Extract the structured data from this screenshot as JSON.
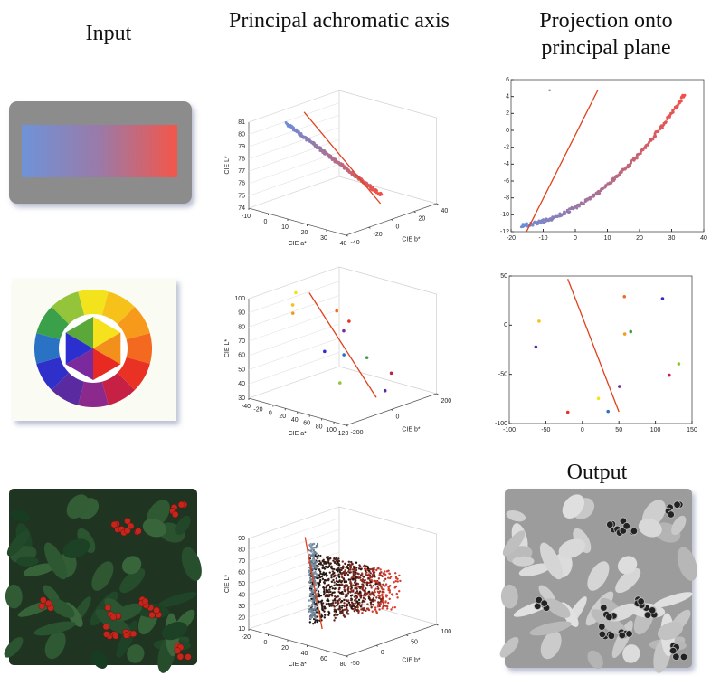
{
  "headers": {
    "input": "Input",
    "axis": "Principal achromatic axis",
    "projection": "Projection onto principal plane"
  },
  "output_label": "Output",
  "rows": [
    {
      "axis_plot": {
        "z_label": "CIE L*",
        "x_label": "CIE a*",
        "y_label": "CIE b*",
        "z_ticks": [
          74,
          75,
          76,
          77,
          78,
          79,
          80,
          81
        ],
        "x_ticks": [
          -10,
          0,
          10,
          20,
          30,
          40
        ],
        "y_ticks": [
          -40,
          -20,
          0,
          20,
          40
        ]
      },
      "projection_plot": {
        "x_ticks": [
          -20,
          -10,
          0,
          10,
          20,
          30,
          40
        ],
        "y_ticks": [
          -12,
          -10,
          -8,
          -6,
          -4,
          -2,
          0,
          2,
          4,
          6
        ]
      }
    },
    {
      "axis_plot": {
        "z_label": "CIE L*",
        "x_label": "CIE a*",
        "y_label": "CIE b*",
        "z_ticks": [
          30,
          40,
          50,
          60,
          70,
          80,
          90,
          100
        ],
        "x_ticks": [
          -40,
          -20,
          0,
          20,
          40,
          60,
          80,
          100,
          120
        ],
        "y_ticks": [
          -200,
          0,
          200
        ]
      },
      "projection_plot": {
        "x_ticks": [
          -100,
          -50,
          0,
          50,
          100,
          150
        ],
        "y_ticks": [
          -100,
          -50,
          0,
          50
        ]
      }
    },
    {
      "axis_plot": {
        "z_label": "CIE L*",
        "x_label": "CIE a*",
        "y_label": "CIE b*",
        "z_ticks": [
          10,
          20,
          30,
          40,
          50,
          60,
          70,
          80,
          90
        ],
        "x_ticks": [
          -20,
          0,
          20,
          40,
          60,
          80
        ],
        "y_ticks": [
          -50,
          0,
          50,
          100
        ]
      }
    }
  ]
}
